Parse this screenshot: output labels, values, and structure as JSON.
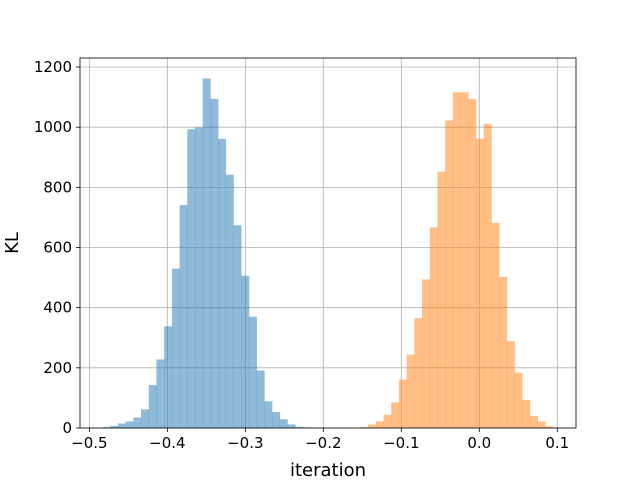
{
  "chart_data": {
    "type": "bar",
    "subtype": "histogram",
    "title": "",
    "xlabel": "iteration",
    "ylabel": "KL",
    "xlim": [
      -0.512,
      0.124
    ],
    "ylim": [
      0,
      1230
    ],
    "xticks": [
      -0.5,
      -0.4,
      -0.3,
      -0.2,
      -0.1,
      0.0,
      0.1
    ],
    "xtick_labels": [
      "−0.5",
      "−0.4",
      "−0.3",
      "−0.2",
      "−0.1",
      "0.0",
      "0.1"
    ],
    "yticks": [
      0,
      200,
      400,
      600,
      800,
      1000,
      1200
    ],
    "ytick_labels": [
      "0",
      "200",
      "400",
      "600",
      "800",
      "1000",
      "1200"
    ],
    "grid": true,
    "legend": false,
    "bar_opacity": 0.5,
    "series": [
      {
        "color": "#1f77b4",
        "bin_width": 0.00988,
        "bin_start": -0.4831,
        "counts": [
          3,
          7,
          15,
          22,
          35,
          62,
          143,
          228,
          338,
          530,
          741,
          993,
          999,
          1162,
          1094,
          961,
          842,
          674,
          506,
          370,
          191,
          89,
          53,
          29,
          12,
          4,
          2,
          1
        ]
      },
      {
        "color": "#ff7f0e",
        "bin_width": 0.00988,
        "bin_start": -0.1623,
        "counts": [
          1,
          3,
          12,
          22,
          44,
          85,
          161,
          244,
          365,
          494,
          667,
          852,
          1022,
          1116,
          1116,
          1094,
          962,
          1011,
          682,
          502,
          289,
          184,
          93,
          40,
          22,
          6,
          1
        ]
      }
    ]
  }
}
